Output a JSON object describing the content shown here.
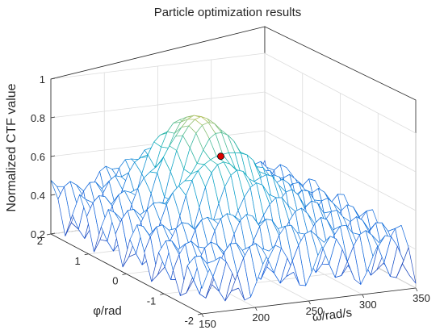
{
  "chart_data": {
    "type": "surface",
    "title": "Particle optimization results",
    "xlabel": "ω/rad/s",
    "ylabel": "φ/rad",
    "zlabel": "Normalized CTF value",
    "xlim": [
      150,
      350
    ],
    "ylim": [
      -2,
      2
    ],
    "zlim": [
      0.2,
      1.0
    ],
    "x_ticks": [
      150,
      200,
      250,
      300,
      350
    ],
    "y_ticks": [
      -2,
      -1,
      0,
      1,
      2
    ],
    "z_ticks": [
      "0.2",
      "0.4",
      "0.6",
      "0.8",
      "1"
    ],
    "grid": true,
    "colormap": "parula",
    "mesh_style": "wireframe",
    "mesh_grid": {
      "x_count": 36,
      "y_count": 22
    },
    "surface_summary": {
      "ridge_center_omega": 230,
      "ridge_center_phi": 0.3,
      "peak_value": 0.93,
      "baseline_low": 0.22,
      "baseline_high": 0.48
    },
    "optimum_point": {
      "omega": 263,
      "phi": 0.7,
      "value": 0.66,
      "color": "#dd0000"
    }
  }
}
